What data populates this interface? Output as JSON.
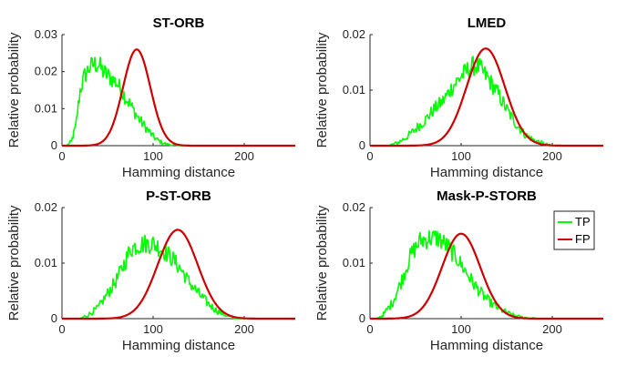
{
  "figure": {
    "legend_entries": [
      {
        "label": "TP",
        "color": "#00ff00"
      },
      {
        "label": "FP",
        "color": "#cc0000"
      }
    ]
  },
  "chart_data": [
    {
      "type": "line",
      "title": "ST-ORB",
      "xlabel": "Hamming distance",
      "ylabel": "Relative probability",
      "xlim": [
        0,
        256
      ],
      "ylim": [
        0,
        0.03
      ],
      "xticks": [
        0,
        100,
        200
      ],
      "yticks": [
        0,
        0.01,
        0.02,
        0.03
      ],
      "ytick_labels": [
        "0",
        "0.01",
        "0.02",
        "0.03"
      ],
      "series": [
        {
          "name": "TP",
          "color": "#00ff00",
          "noisy": true,
          "x": [
            5,
            10,
            15,
            20,
            25,
            30,
            35,
            40,
            45,
            50,
            55,
            60,
            65,
            70,
            75,
            80,
            85,
            90,
            95,
            100,
            105,
            110,
            115,
            120,
            125,
            130,
            135,
            140,
            256
          ],
          "y": [
            0,
            0.001,
            0.005,
            0.015,
            0.019,
            0.021,
            0.022,
            0.022,
            0.02,
            0.019,
            0.018,
            0.017,
            0.015,
            0.013,
            0.011,
            0.009,
            0.007,
            0.0055,
            0.004,
            0.0025,
            0.0015,
            0.0008,
            0.0004,
            0.0002,
            0.0001,
            0,
            0,
            0,
            0
          ]
        },
        {
          "name": "FP",
          "color": "#cc0000",
          "noisy": false,
          "gaussian": {
            "mean": 82,
            "sd": 15,
            "peak": 0.026
          }
        }
      ]
    },
    {
      "type": "line",
      "title": "LMED",
      "xlabel": "Hamming distance",
      "ylabel": "Relative probability",
      "xlim": [
        0,
        256
      ],
      "ylim": [
        0,
        0.02
      ],
      "xticks": [
        0,
        100,
        200
      ],
      "yticks": [
        0,
        0.01,
        0.02
      ],
      "ytick_labels": [
        "0",
        "0.01",
        "0.02"
      ],
      "series": [
        {
          "name": "TP",
          "color": "#00ff00",
          "noisy": true,
          "x": [
            20,
            30,
            40,
            50,
            60,
            70,
            80,
            90,
            100,
            110,
            115,
            120,
            130,
            140,
            150,
            160,
            170,
            180,
            190,
            200,
            256
          ],
          "y": [
            0,
            0.0005,
            0.0015,
            0.003,
            0.0045,
            0.0065,
            0.008,
            0.0105,
            0.0125,
            0.014,
            0.0145,
            0.014,
            0.012,
            0.0095,
            0.0065,
            0.004,
            0.002,
            0.001,
            0.0004,
            0,
            0
          ]
        },
        {
          "name": "FP",
          "color": "#cc0000",
          "noisy": false,
          "gaussian": {
            "mean": 127,
            "sd": 21,
            "peak": 0.0175
          }
        }
      ]
    },
    {
      "type": "line",
      "title": "P-ST-ORB",
      "xlabel": "Hamming distance",
      "ylabel": "Relative probability",
      "xlim": [
        0,
        256
      ],
      "ylim": [
        0,
        0.02
      ],
      "xticks": [
        0,
        100,
        200
      ],
      "yticks": [
        0,
        0.01,
        0.02
      ],
      "ytick_labels": [
        "0",
        "0.01",
        "0.02"
      ],
      "series": [
        {
          "name": "TP",
          "color": "#00ff00",
          "noisy": true,
          "x": [
            20,
            30,
            40,
            50,
            60,
            70,
            75,
            80,
            90,
            100,
            110,
            120,
            130,
            140,
            150,
            160,
            170,
            180,
            190,
            256
          ],
          "y": [
            0,
            0.0008,
            0.002,
            0.0045,
            0.007,
            0.0105,
            0.0125,
            0.013,
            0.0135,
            0.0135,
            0.0125,
            0.011,
            0.009,
            0.0065,
            0.0045,
            0.0028,
            0.0014,
            0.0006,
            0,
            0
          ]
        },
        {
          "name": "FP",
          "color": "#cc0000",
          "noisy": false,
          "gaussian": {
            "mean": 127,
            "sd": 22,
            "peak": 0.016
          }
        }
      ]
    },
    {
      "type": "line",
      "title": "Mask-P-STORB",
      "xlabel": "Hamming distance",
      "ylabel": "Relative probability",
      "xlim": [
        0,
        256
      ],
      "ylim": [
        0,
        0.02
      ],
      "xticks": [
        0,
        100,
        200
      ],
      "yticks": [
        0,
        0.01,
        0.02
      ],
      "ytick_labels": [
        "0",
        "0.01",
        "0.02"
      ],
      "legend": true,
      "series": [
        {
          "name": "TP",
          "color": "#00ff00",
          "noisy": true,
          "x": [
            8,
            15,
            25,
            35,
            45,
            55,
            65,
            75,
            85,
            95,
            105,
            115,
            125,
            135,
            145,
            155,
            165,
            175,
            185,
            256
          ],
          "y": [
            0,
            0.0008,
            0.003,
            0.007,
            0.0115,
            0.014,
            0.0145,
            0.0145,
            0.013,
            0.011,
            0.0085,
            0.006,
            0.004,
            0.0025,
            0.0015,
            0.0007,
            0.0003,
            0.0001,
            0,
            0
          ]
        },
        {
          "name": "FP",
          "color": "#cc0000",
          "noisy": false,
          "gaussian": {
            "mean": 100,
            "sd": 21,
            "peak": 0.0153
          }
        }
      ]
    }
  ]
}
